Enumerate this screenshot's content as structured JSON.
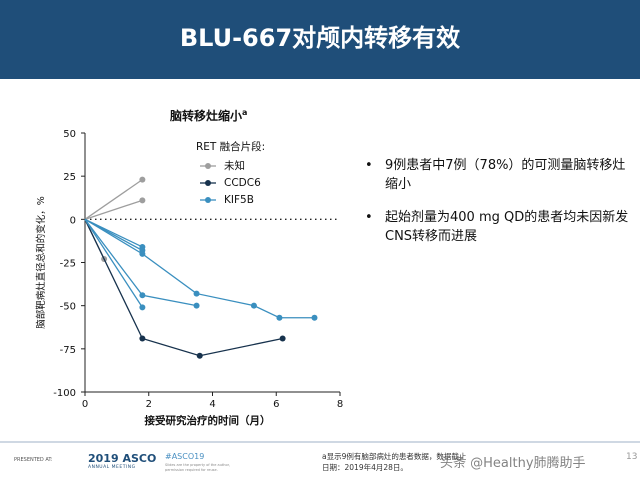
{
  "slide": {
    "title": "BLU-667对颅内转移有效",
    "bullets": [
      "9例患者中7例（78%）的可测量脑转移灶缩小",
      "起始剂量为400 mg QD的患者均未因新发CNS转移而进展"
    ]
  },
  "chart_title": {
    "text": "脑转移灶缩小",
    "sup": "a"
  },
  "chart_data": {
    "type": "line",
    "xlabel": "接受研究治疗的时间（月）",
    "ylabel": "脑部靶病灶直径总和的变化，%",
    "xlim": [
      0,
      8
    ],
    "ylim": [
      -100,
      50
    ],
    "xticks": [
      "0",
      "2",
      "4",
      "6",
      "8"
    ],
    "yticks": [
      "50",
      "25",
      "0",
      "-25",
      "-50",
      "-75",
      "-100"
    ],
    "reference_line": 0,
    "legend_title": "RET 融合片段:",
    "series": [
      {
        "name": "未知",
        "color": "#9e9e9e",
        "points": [
          [
            0,
            0
          ],
          [
            1.8,
            23
          ]
        ]
      },
      {
        "name": "未知",
        "color": "#9e9e9e",
        "points": [
          [
            0,
            0
          ],
          [
            1.8,
            11
          ]
        ]
      },
      {
        "name": "未知",
        "color": "#9e9e9e",
        "points": [
          [
            0,
            0
          ],
          [
            0.6,
            -23
          ]
        ]
      },
      {
        "name": "CCDC6",
        "color": "#17324d",
        "points": [
          [
            0,
            0
          ],
          [
            1.8,
            -69
          ],
          [
            3.6,
            -79
          ],
          [
            6.2,
            -69
          ]
        ]
      },
      {
        "name": "KIF5B",
        "color": "#3a8fbf",
        "points": [
          [
            0,
            0
          ],
          [
            1.8,
            -16
          ]
        ]
      },
      {
        "name": "KIF5B",
        "color": "#3a8fbf",
        "points": [
          [
            0,
            0
          ],
          [
            1.8,
            -18
          ]
        ]
      },
      {
        "name": "KIF5B",
        "color": "#3a8fbf",
        "points": [
          [
            0,
            0
          ],
          [
            1.8,
            -51
          ]
        ]
      },
      {
        "name": "KIF5B",
        "color": "#3a8fbf",
        "points": [
          [
            0,
            0
          ],
          [
            1.8,
            -20
          ],
          [
            3.5,
            -43
          ],
          [
            5.3,
            -50
          ],
          [
            6.1,
            -57
          ],
          [
            7.2,
            -57
          ]
        ]
      },
      {
        "name": "KIF5B",
        "color": "#3a8fbf",
        "points": [
          [
            0,
            0
          ],
          [
            1.8,
            -44
          ],
          [
            3.5,
            -50
          ]
        ]
      }
    ],
    "legend": [
      {
        "name": "未知",
        "color": "#9e9e9e"
      },
      {
        "name": "CCDC6",
        "color": "#17324d"
      },
      {
        "name": "KIF5B",
        "color": "#3a8fbf"
      }
    ]
  },
  "footer": {
    "presented_at": "PRESENTED AT:",
    "asco_year": "2019 ASCO",
    "asco_sub": "ANNUAL MEETING",
    "hashtag": "#ASCO19",
    "slides_note": "Slides are the property of the author, permission required for reuse.",
    "footnote": "a显示9例有脑部病灶的患者数据，数据截止日期：2019年4月28日。",
    "watermark": "头条 @Healthy肺腾助手",
    "page_number": "13"
  },
  "colors": {
    "header_bg": "#1f4e79",
    "accent": "#3a8fbf"
  }
}
